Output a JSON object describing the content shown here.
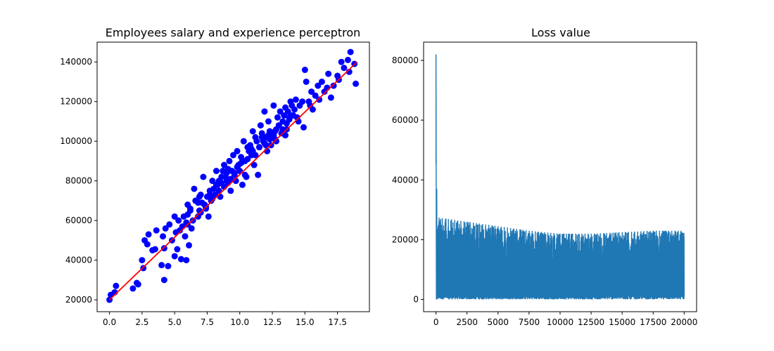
{
  "chart_data": [
    {
      "type": "scatter",
      "title": "Employees salary and experience perceptron",
      "xlabel": "",
      "ylabel": "",
      "xlim": [
        -0.95,
        19.95
      ],
      "ylim": [
        14000,
        150000
      ],
      "xticks": [
        0.0,
        2.5,
        5.0,
        7.5,
        10.0,
        12.5,
        15.0,
        17.5
      ],
      "xtick_labels": [
        "0.0",
        "2.5",
        "5.0",
        "7.5",
        "10.0",
        "12.5",
        "15.0",
        "17.5"
      ],
      "yticks": [
        20000,
        40000,
        60000,
        80000,
        100000,
        120000,
        140000
      ],
      "ytick_labels": [
        "20000",
        "40000",
        "60000",
        "80000",
        "100000",
        "120000",
        "140000"
      ],
      "grid": false,
      "colors": {
        "points": "#0000ff",
        "fit_line": "#ff0000"
      },
      "series": [
        {
          "kind": "points",
          "x": [
            0.0,
            0.1,
            0.4,
            0.5,
            1.8,
            2.1,
            2.2,
            2.5,
            2.6,
            2.7,
            2.9,
            3.0,
            3.3,
            3.5,
            3.6,
            4.0,
            4.1,
            4.2,
            4.3,
            4.5,
            4.6,
            4.8,
            5.0,
            5.0,
            5.2,
            5.3,
            5.4,
            5.5,
            5.6,
            5.7,
            5.8,
            5.9,
            6.0,
            6.0,
            6.1,
            6.2,
            6.3,
            6.4,
            6.5,
            6.6,
            6.8,
            6.9,
            7.0,
            7.1,
            7.2,
            7.3,
            7.4,
            7.5,
            7.6,
            7.7,
            7.8,
            7.9,
            8.0,
            8.1,
            8.2,
            8.3,
            8.4,
            8.5,
            8.6,
            8.7,
            8.8,
            8.9,
            9.0,
            9.1,
            9.2,
            9.3,
            9.4,
            9.5,
            9.6,
            9.7,
            9.8,
            9.9,
            10.0,
            10.1,
            10.2,
            10.3,
            10.4,
            10.5,
            10.6,
            10.7,
            10.8,
            10.9,
            11.0,
            11.1,
            11.2,
            11.3,
            11.4,
            11.5,
            11.6,
            11.7,
            11.8,
            11.9,
            12.0,
            12.1,
            12.2,
            12.3,
            12.4,
            12.5,
            12.6,
            12.7,
            12.8,
            12.9,
            13.0,
            13.1,
            13.2,
            13.3,
            13.4,
            13.5,
            13.6,
            13.7,
            13.8,
            13.9,
            14.0,
            14.1,
            14.2,
            14.3,
            14.5,
            14.6,
            14.8,
            15.0,
            15.1,
            15.3,
            15.5,
            15.8,
            16.0,
            16.3,
            16.5,
            16.8,
            17.0,
            17.2,
            17.5,
            17.8,
            18.0,
            18.3,
            18.5,
            18.8,
            6.9,
            7.4,
            8.2,
            9.0,
            9.8,
            10.4,
            11.2,
            12.0,
            12.7,
            13.5,
            6.2,
            6.8,
            7.7,
            8.6,
            9.3,
            10.1,
            11.0,
            11.9,
            12.6,
            13.3,
            5.9,
            7.0,
            7.9,
            8.8,
            9.6,
            10.6,
            11.5,
            12.3,
            13.8,
            14.4,
            4.2,
            5.1,
            6.0,
            8.4,
            9.1,
            10.9,
            12.2,
            13.0,
            14.0,
            15.4,
            16.1,
            16.7,
            17.6,
            18.4,
            18.9,
            15.6,
            14.9,
            13.6,
            12.8,
            11.7
          ],
          "y": [
            20000,
            22500,
            23800,
            27000,
            25700,
            28500,
            27800,
            40000,
            36000,
            50000,
            48000,
            53000,
            45000,
            45500,
            55000,
            37500,
            52000,
            30000,
            56000,
            37000,
            58000,
            50000,
            42000,
            62000,
            45500,
            60000,
            55000,
            40500,
            57000,
            62000,
            52000,
            40000,
            68000,
            63000,
            47500,
            66000,
            56000,
            60000,
            76000,
            70000,
            62000,
            65000,
            73000,
            69000,
            82000,
            68000,
            67000,
            72000,
            62000,
            75000,
            70000,
            80000,
            76000,
            73000,
            85000,
            78000,
            80000,
            72000,
            82000,
            85000,
            88000,
            82000,
            80000,
            86000,
            90000,
            75000,
            85000,
            93000,
            84000,
            80000,
            95000,
            88000,
            85000,
            92000,
            78000,
            100000,
            90000,
            82000,
            97000,
            95000,
            98000,
            93000,
            105000,
            88000,
            102000,
            100000,
            83000,
            97000,
            108000,
            104000,
            100000,
            115000,
            102000,
            95000,
            110000,
            105000,
            98000,
            103000,
            118000,
            105000,
            100000,
            112000,
            108000,
            115000,
            104000,
            110000,
            113000,
            117000,
            106000,
            115000,
            112000,
            120000,
            118000,
            113000,
            116000,
            121000,
            110000,
            118000,
            120000,
            136000,
            130000,
            120000,
            125000,
            123000,
            128000,
            130000,
            125000,
            134000,
            122000,
            128000,
            133000,
            140000,
            137000,
            141000,
            145000,
            139000,
            72000,
            66000,
            78000,
            84000,
            87000,
            83000,
            93000,
            98000,
            101000,
            103000,
            65000,
            69000,
            73000,
            79000,
            81000,
            89000,
            95000,
            99000,
            103000,
            106000,
            59000,
            64000,
            71000,
            77000,
            83000,
            91000,
            97000,
            101000,
            111000,
            112000,
            46000,
            54000,
            58000,
            75000,
            79000,
            96000,
            103000,
            108000,
            113000,
            118000,
            121000,
            127000,
            131000,
            135000,
            129000,
            116000,
            107000,
            109000,
            106000,
            102000
          ]
        },
        {
          "kind": "fit_line",
          "x": [
            0,
            19
          ],
          "y": [
            20000,
            140000
          ]
        }
      ]
    },
    {
      "type": "line",
      "title": "Loss value",
      "xlabel": "",
      "ylabel": "",
      "xlim": [
        -1000,
        21000
      ],
      "ylim": [
        -4100,
        86100
      ],
      "xticks": [
        0,
        2500,
        5000,
        7500,
        10000,
        12500,
        15000,
        17500,
        20000
      ],
      "xtick_labels": [
        "0",
        "2500",
        "5000",
        "7500",
        "10000",
        "12500",
        "15000",
        "17500",
        "20000"
      ],
      "yticks": [
        0,
        20000,
        40000,
        60000,
        80000
      ],
      "ytick_labels": [
        "0",
        "20000",
        "40000",
        "60000",
        "80000"
      ],
      "grid": false,
      "colors": {
        "line": "#1f77b4"
      },
      "series": [
        {
          "kind": "loss",
          "x_max": 20000,
          "initial_peak": 82000,
          "early_spike": 37000,
          "oscillation_floor": 0,
          "envelope_x": [
            0,
            2500,
            5000,
            7500,
            10000,
            12500,
            15000,
            17500,
            20000
          ],
          "envelope_y": [
            27500,
            26000,
            24500,
            23000,
            22000,
            22000,
            22500,
            23000,
            23000
          ]
        }
      ]
    }
  ]
}
